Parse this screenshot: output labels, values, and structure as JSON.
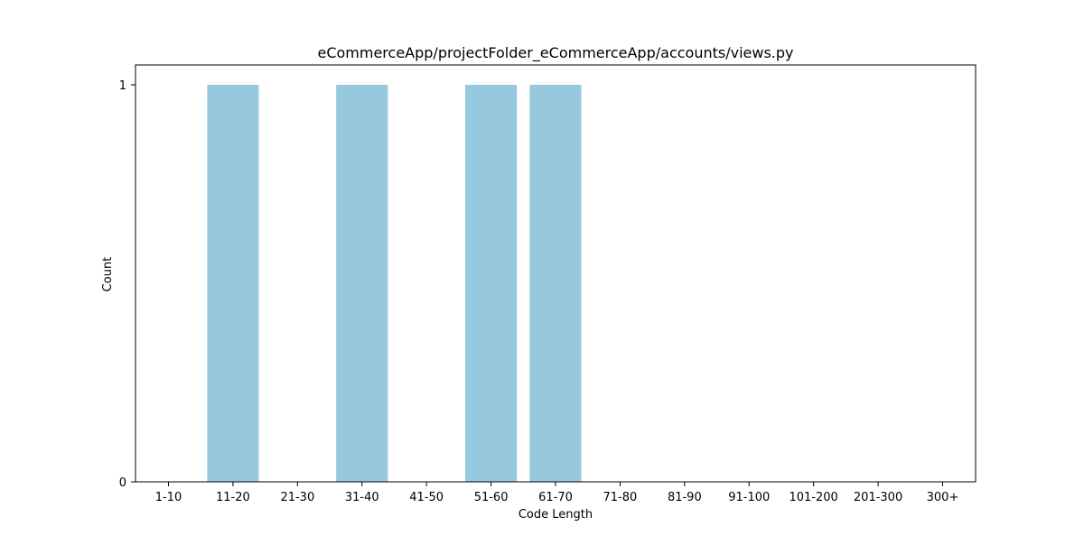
{
  "chart_data": {
    "type": "bar",
    "title": "eCommerceApp/projectFolder_eCommerceApp/accounts/views.py",
    "xlabel": "Code Length",
    "ylabel": "Count",
    "categories": [
      "1-10",
      "11-20",
      "21-30",
      "31-40",
      "41-50",
      "51-60",
      "61-70",
      "71-80",
      "81-90",
      "91-100",
      "101-200",
      "201-300",
      "300+"
    ],
    "values": [
      0,
      1,
      0,
      1,
      0,
      1,
      1,
      0,
      0,
      0,
      0,
      0,
      0
    ],
    "ylim": [
      0,
      1
    ],
    "yticks": [
      0,
      1
    ],
    "grid": false,
    "colors": {
      "bar": "#96c9de",
      "axis": "#000000",
      "background": "#ffffff"
    }
  }
}
